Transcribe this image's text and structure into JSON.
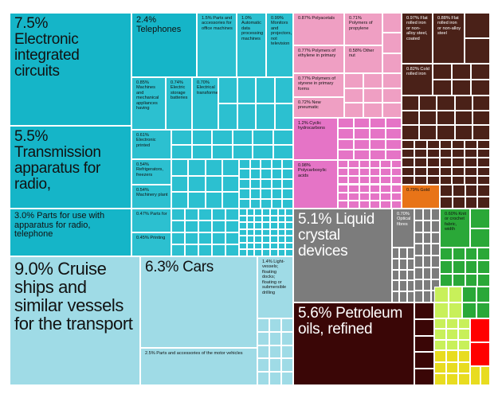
{
  "chart_data": {
    "type": "treemap",
    "title": "",
    "colors": {
      "electronics": "#15b5c8",
      "machinery": "#2cc0d0",
      "transport": "#9fdbe6",
      "chemicals": "#ef9fc3",
      "chem_dark": "#e574c6",
      "metals": "#4a2118",
      "metal_dark": "#3b120c",
      "gold": "#e87418",
      "instruments": "#7c7c7c",
      "minerals": "#3a0606",
      "textiles": "#2aa838",
      "textile_light": "#c8f05a",
      "misc": "#e8dc20",
      "red": "#ff0000"
    },
    "tiles": [
      {
        "value": 7.5,
        "label": "7.5%\nElectronic integrated circuits",
        "group": "electronics"
      },
      {
        "value": 5.5,
        "label": "5.5%\nTransmission apparatus for radio,",
        "group": "electronics"
      },
      {
        "value": 3.0,
        "label": "3.0% Parts for use with apparatus for radio, telephone",
        "group": "electronics"
      },
      {
        "value": 9.0,
        "label": "9.0% Cruise ships and similar vessels for the transport",
        "group": "transport"
      },
      {
        "value": 6.3,
        "label": "6.3% Cars",
        "group": "transport"
      },
      {
        "value": 2.5,
        "label": "2.5% Parts and accessories of the motor vehicles",
        "group": "transport"
      },
      {
        "value": 1.4,
        "label": "1.4% Light-vessels; floating docks; floating or submersible drilling",
        "group": "transport"
      },
      {
        "value": 2.4,
        "label": "2.4% Telephones",
        "group": "electronics"
      },
      {
        "value": 1.5,
        "label": "1.5% Parts and accessories for office machines",
        "group": "machinery"
      },
      {
        "value": 1.0,
        "label": "1.0% Automatic data processing machines",
        "group": "machinery"
      },
      {
        "value": 0.99,
        "label": "0.99% Monitors and projectors, not television",
        "group": "machinery"
      },
      {
        "value": 0.85,
        "label": "0.85% Machines and mechanical appliances having",
        "group": "machinery"
      },
      {
        "value": 0.74,
        "label": "0.74% Electric storage batteries",
        "group": "machinery"
      },
      {
        "value": 0.7,
        "label": "0.70% Electrical transformers",
        "group": "machinery"
      },
      {
        "value": 0.61,
        "label": "0.61% Electronic printed",
        "group": "machinery"
      },
      {
        "value": 0.54,
        "label": "0.54% Refrigerators, freezers",
        "group": "machinery"
      },
      {
        "value": 0.54,
        "label": "0.54% Machinery plant",
        "group": "machinery"
      },
      {
        "value": 0.47,
        "label": "0.47% Parts for",
        "group": "machinery"
      },
      {
        "value": 0.45,
        "label": "0.45% Printing",
        "group": "machinery"
      },
      {
        "value": 0.87,
        "label": "0.87% Polyacetals",
        "group": "chemicals"
      },
      {
        "value": 0.71,
        "label": "0.71% Polymers of propylene",
        "group": "chemicals"
      },
      {
        "value": 0.77,
        "label": "0.77% Polymers of ethylene in primary",
        "group": "chemicals"
      },
      {
        "value": 0.58,
        "label": "0.58% Other nut",
        "group": "chemicals"
      },
      {
        "value": 0.77,
        "label": "0.77% Polymers of styrene in primary forms",
        "group": "chemicals"
      },
      {
        "value": 0.72,
        "label": "0.72% New pneumatic",
        "group": "chemicals"
      },
      {
        "value": 1.2,
        "label": "1.2% Cyclic hydrocarbons",
        "group": "chem_dark"
      },
      {
        "value": 0.98,
        "label": "0.98% Polycarboxylic acids",
        "group": "chem_dark"
      },
      {
        "value": 0.97,
        "label": "0.97% Flat rolled iron or non-alloy steel, coated",
        "group": "metals"
      },
      {
        "value": 0.88,
        "label": "0.88% Flat rolled iron or non-alloy steel",
        "group": "metals"
      },
      {
        "value": 0.82,
        "label": "0.82% Cold rolled iron",
        "group": "metals"
      },
      {
        "value": 0.79,
        "label": "0.79% Gold",
        "group": "gold"
      },
      {
        "value": 5.1,
        "label": "5.1% Liquid crystal devices",
        "group": "instruments"
      },
      {
        "value": 0.7,
        "label": "0.70% Optical fibres",
        "group": "instruments"
      },
      {
        "value": 0.6,
        "label": "0.60% Knit or crochet fabric, width",
        "group": "textiles"
      },
      {
        "value": 5.6,
        "label": "5.6% Petroleum oils, refined",
        "group": "minerals"
      }
    ]
  }
}
